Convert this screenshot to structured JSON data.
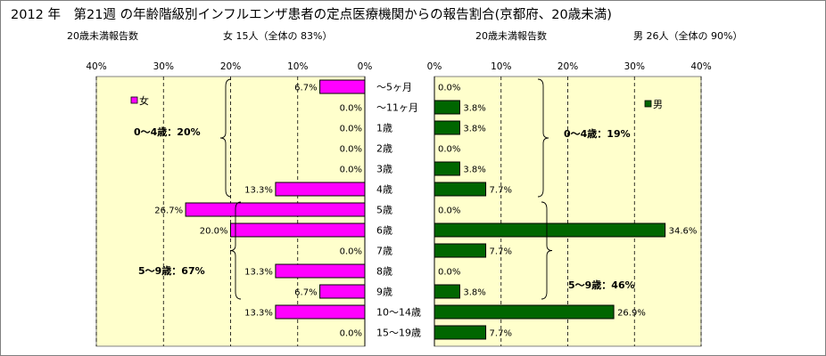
{
  "title": "2012 年　第21週 の年齢階級別インフルエンザ患者の定点医療機関からの報告割合(京都府、20歳未満)",
  "left_header": {
    "label": "20歳未満報告数",
    "summary": "女  15人（全体の  83%）"
  },
  "right_header": {
    "label": "20歳未満報告数",
    "summary": "男  26人（全体の  90%）"
  },
  "colors": {
    "female": "#ff00ff",
    "male": "#006600",
    "plot_bg": "#ffffcc",
    "grid": "#000000"
  },
  "chart_data": [
    {
      "type": "bar",
      "orientation": "horizontal",
      "direction": "right-to-left",
      "series": [
        {
          "name": "女",
          "values": [
            6.7,
            0.0,
            0.0,
            0.0,
            0.0,
            13.3,
            26.7,
            20.0,
            0.0,
            13.3,
            6.7,
            13.3,
            0.0
          ],
          "labels": [
            "6.7%",
            "0.0%",
            "0.0%",
            "0.0%",
            "0.0%",
            "13.3%",
            "26.7%",
            "20.0%",
            "0.0%",
            "13.3%",
            "6.7%",
            "13.3%",
            "0.0%"
          ]
        }
      ],
      "xlim": [
        0,
        40
      ],
      "xticks": [
        "40%",
        "30%",
        "20%",
        "10%",
        "0%"
      ],
      "grid": true,
      "legend": "top-left",
      "annotations": [
        {
          "text": "0～4歳：20%",
          "from": 0,
          "to": 5
        },
        {
          "text": "5～9歳：67%",
          "from": 6,
          "to": 10
        }
      ]
    },
    {
      "type": "bar",
      "orientation": "horizontal",
      "direction": "left-to-right",
      "series": [
        {
          "name": "男",
          "values": [
            0.0,
            3.8,
            3.8,
            0.0,
            3.8,
            7.7,
            0.0,
            34.6,
            7.7,
            0.0,
            3.8,
            26.9,
            7.7
          ],
          "labels": [
            "0.0%",
            "3.8%",
            "3.8%",
            "0.0%",
            "3.8%",
            "7.7%",
            "0.0%",
            "34.6%",
            "7.7%",
            "0.0%",
            "3.8%",
            "26.9%",
            "7.7%"
          ]
        }
      ],
      "xlim": [
        0,
        40
      ],
      "xticks": [
        "0%",
        "10%",
        "20%",
        "30%",
        "40%"
      ],
      "grid": true,
      "legend": "top-right",
      "annotations": [
        {
          "text": "0～4歳：19%",
          "from": 0,
          "to": 5
        },
        {
          "text": "5～9歳：46%",
          "from": 6,
          "to": 10
        }
      ]
    }
  ],
  "categories": [
    "～5ヶ月",
    "～11ヶ月",
    "1歳",
    "2歳",
    "3歳",
    "4歳",
    "5歳",
    "6歳",
    "7歳",
    "8歳",
    "9歳",
    "10～14歳",
    "15～19歳"
  ]
}
